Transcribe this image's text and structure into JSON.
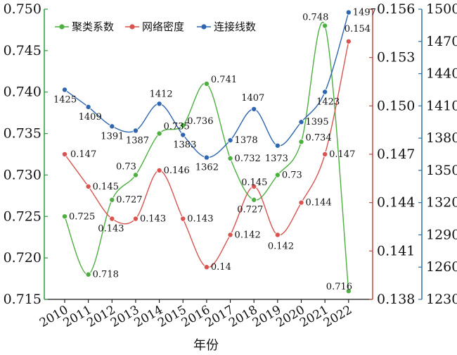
{
  "chart_data": {
    "type": "line",
    "xlabel": "年份",
    "x": [
      "2010",
      "2011",
      "2012",
      "2013",
      "2014",
      "2015",
      "2016",
      "2017",
      "2018",
      "2019",
      "2020",
      "2021",
      "2022"
    ],
    "legend_position": "top-left",
    "grid": false,
    "axes": {
      "left": {
        "min": 0.715,
        "max": 0.75,
        "ticks": [
          "0.715",
          "0.720",
          "0.725",
          "0.730",
          "0.735",
          "0.740",
          "0.745",
          "0.750"
        ],
        "color": "#2e9a3a"
      },
      "right1": {
        "min": 0.138,
        "max": 0.156,
        "ticks": [
          "0.138",
          "0.141",
          "0.144",
          "0.147",
          "0.150",
          "0.153",
          "0.156"
        ],
        "color": "#c9433d"
      },
      "right2": {
        "min": 1230,
        "max": 1500,
        "ticks": [
          "1230",
          "1260",
          "1290",
          "1320",
          "1350",
          "1380",
          "1410",
          "1440",
          "1470",
          "1500"
        ],
        "color": "#2d6fa8"
      }
    },
    "series": [
      {
        "name": "聚类系数",
        "axis": "left",
        "color": "#4caf3f",
        "values": [
          0.725,
          0.718,
          0.727,
          0.73,
          0.735,
          0.736,
          0.741,
          0.732,
          0.727,
          0.73,
          0.734,
          0.748,
          0.716
        ],
        "labels": [
          "0.725",
          "0.718",
          "0.727",
          "0.73",
          "0.735",
          "0.736",
          "0.741",
          "0.732",
          "0.727",
          "0.73",
          "0.734",
          "0.748",
          "0.716"
        ]
      },
      {
        "name": "网络密度",
        "axis": "right1",
        "color": "#d9534f",
        "values": [
          0.147,
          0.145,
          0.143,
          0.143,
          0.146,
          0.143,
          0.14,
          0.142,
          0.145,
          0.142,
          0.144,
          0.147,
          0.154
        ],
        "labels": [
          "0.147",
          "0.145",
          "0.143",
          "0.143",
          "0.146",
          "0.143",
          "0.14",
          "0.142",
          "0.145",
          "0.142",
          "0.144",
          "0.147",
          "0.154"
        ]
      },
      {
        "name": "连接线数",
        "axis": "right2",
        "color": "#2f66b0",
        "values": [
          1425,
          1409,
          1391,
          1387,
          1412,
          1383,
          1362,
          1378,
          1407,
          1373,
          1395,
          1423,
          1497
        ],
        "labels": [
          "1425",
          "1409",
          "1391",
          "1387",
          "1412",
          "1383",
          "1362",
          "1378",
          "1407",
          "1373",
          "1395",
          "1423",
          "1497"
        ]
      }
    ]
  }
}
